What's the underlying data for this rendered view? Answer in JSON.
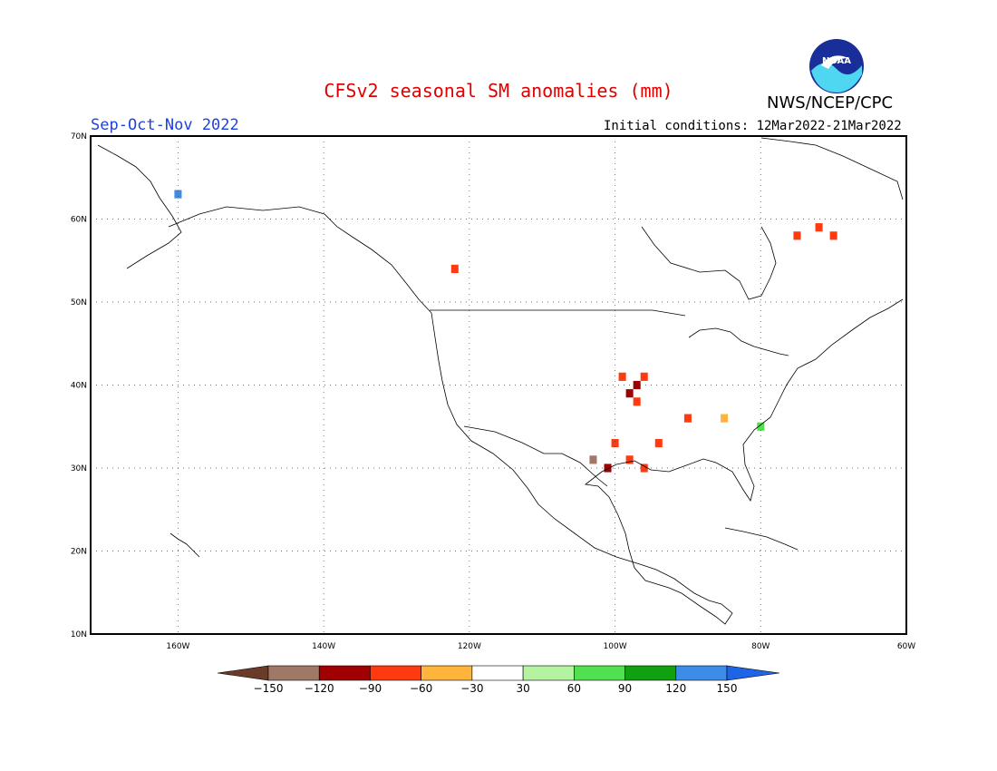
{
  "header": {
    "title": "CFSv2 seasonal SM anomalies (mm)",
    "agency": "NWS/NCEP/CPC",
    "season": "Sep-Oct-Nov 2022",
    "initial_conditions": "Initial conditions: 12Mar2022-21Mar2022",
    "logo_text": "NOAA"
  },
  "map": {
    "projection": "lat-lon",
    "lon_range": [
      -172,
      -60
    ],
    "lat_range": [
      10,
      70
    ],
    "gridlines": "dotted",
    "lat_ticks": [
      {
        "value": 70,
        "label": "70N"
      },
      {
        "value": 60,
        "label": "60N"
      },
      {
        "value": 50,
        "label": "50N"
      },
      {
        "value": 40,
        "label": "40N"
      },
      {
        "value": 30,
        "label": "30N"
      },
      {
        "value": 20,
        "label": "20N"
      },
      {
        "value": 10,
        "label": "10N"
      }
    ],
    "lon_ticks": [
      {
        "value": -160,
        "label": "160W"
      },
      {
        "value": -140,
        "label": "140W"
      },
      {
        "value": -120,
        "label": "120W"
      },
      {
        "value": -100,
        "label": "100W"
      },
      {
        "value": -80,
        "label": "80W"
      },
      {
        "value": -60,
        "label": "60W"
      }
    ]
  },
  "colorbar": {
    "colors": [
      "#6b3b2a",
      "#a07868",
      "#a00000",
      "#ff3a10",
      "#ffb43c",
      "#ffffff",
      "#b4f4a0",
      "#50e050",
      "#10a010",
      "#3c8ce8",
      "#1e64e6"
    ],
    "labels": [
      "−150",
      "−120",
      "−90",
      "−60",
      "−30",
      "30",
      "60",
      "90",
      "120",
      "150"
    ]
  },
  "chart_data": {
    "type": "heatmap",
    "title": "CFSv2 seasonal SM anomalies (mm)",
    "units": "mm",
    "bins": [
      -150,
      -120,
      -90,
      -60,
      -30,
      30,
      60,
      90,
      120,
      150
    ],
    "cells": [
      {
        "lon": -97,
        "lat": 40,
        "anomaly": -120
      },
      {
        "lon": -98,
        "lat": 39,
        "anomaly": -120
      },
      {
        "lon": -96,
        "lat": 41,
        "anomaly": -90
      },
      {
        "lon": -99,
        "lat": 41,
        "anomaly": -90
      },
      {
        "lon": -97,
        "lat": 38,
        "anomaly": -90
      },
      {
        "lon": -100,
        "lat": 33,
        "anomaly": -90
      },
      {
        "lon": -98,
        "lat": 31,
        "anomaly": -75
      },
      {
        "lon": -96,
        "lat": 30,
        "anomaly": -75
      },
      {
        "lon": -94,
        "lat": 33,
        "anomaly": -75
      },
      {
        "lon": -101,
        "lat": 30,
        "anomaly": -120
      },
      {
        "lon": -103,
        "lat": 31,
        "anomaly": -130
      },
      {
        "lon": -72,
        "lat": 59,
        "anomaly": -90
      },
      {
        "lon": -75,
        "lat": 58,
        "anomaly": -75
      },
      {
        "lon": -70,
        "lat": 58,
        "anomaly": -75
      },
      {
        "lon": -90,
        "lat": 36,
        "anomaly": -90
      },
      {
        "lon": -122,
        "lat": 54,
        "anomaly": -90
      },
      {
        "lon": -160,
        "lat": 63,
        "anomaly": 130
      },
      {
        "lon": -85,
        "lat": 36,
        "anomaly": -45
      },
      {
        "lon": -80,
        "lat": 35,
        "anomaly": 75
      }
    ]
  }
}
